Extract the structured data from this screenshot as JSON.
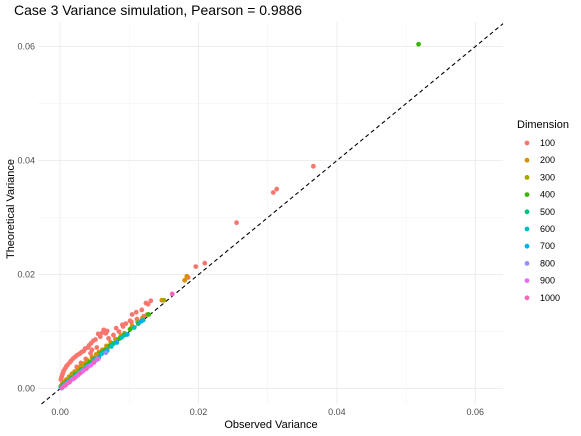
{
  "chart_data": {
    "type": "scatter",
    "title": "Case 3 Variance simulation, Pearson = 0.9886",
    "xlabel": "Observed Variance",
    "ylabel": "Theoretical Variance",
    "xlim": [
      -0.0032,
      0.064
    ],
    "ylim": [
      -0.0027,
      0.0643
    ],
    "xticks": [
      0.0,
      0.02,
      0.04,
      0.06
    ],
    "yticks": [
      0.0,
      0.02,
      0.04,
      0.06
    ],
    "xtick_labels": [
      "0.00",
      "0.02",
      "0.04",
      "0.06"
    ],
    "ytick_labels": [
      "0.00",
      "0.02",
      "0.04",
      "0.06"
    ],
    "grid": true,
    "reference_line": {
      "slope": 1,
      "intercept": 0,
      "style": "dashed"
    },
    "legend": {
      "title": "Dimension",
      "position": "right",
      "entries": [
        "100",
        "200",
        "300",
        "400",
        "500",
        "600",
        "700",
        "800",
        "900",
        "1000"
      ]
    },
    "colors": [
      "#F8766D",
      "#D89000",
      "#A3A500",
      "#39B600",
      "#00BF7D",
      "#00BFC4",
      "#00B0F6",
      "#9590FF",
      "#E76BF3",
      "#FF62BC"
    ],
    "series": [
      {
        "name": "100",
        "color": "#F8766D",
        "points": [
          [
            0.0366,
            0.039
          ],
          [
            0.0313,
            0.035
          ],
          [
            0.0308,
            0.0344
          ],
          [
            0.0255,
            0.0291
          ],
          [
            0.0209,
            0.022
          ],
          [
            0.0196,
            0.0214
          ],
          [
            0.0185,
            0.0195
          ],
          [
            0.0131,
            0.0154
          ],
          [
            0.0124,
            0.015
          ],
          [
            0.0127,
            0.0148
          ],
          [
            0.0118,
            0.0138
          ],
          [
            0.011,
            0.0134
          ],
          [
            0.0104,
            0.013
          ],
          [
            0.0101,
            0.0119
          ],
          [
            0.0103,
            0.0117
          ],
          [
            0.009,
            0.0112
          ],
          [
            0.0091,
            0.0109
          ],
          [
            0.0081,
            0.0106
          ],
          [
            0.0068,
            0.0101
          ],
          [
            0.0066,
            0.0097
          ],
          [
            0.0063,
            0.0103
          ],
          [
            0.0061,
            0.0098
          ],
          [
            0.0055,
            0.0096
          ],
          [
            0.0058,
            0.0091
          ],
          [
            0.0051,
            0.0086
          ],
          [
            0.0048,
            0.0084
          ],
          [
            0.0045,
            0.008
          ],
          [
            0.0042,
            0.0076
          ],
          [
            0.004,
            0.0072
          ],
          [
            0.0036,
            0.007
          ],
          [
            0.0034,
            0.0066
          ],
          [
            0.0031,
            0.0064
          ],
          [
            0.0028,
            0.0061
          ],
          [
            0.0025,
            0.0059
          ],
          [
            0.0022,
            0.0056
          ],
          [
            0.0019,
            0.0053
          ],
          [
            0.0016,
            0.0049
          ],
          [
            0.0014,
            0.0046
          ],
          [
            0.0011,
            0.0042
          ],
          [
            0.0009,
            0.0039
          ],
          [
            0.0007,
            0.0035
          ],
          [
            0.0005,
            0.0031
          ],
          [
            0.0004,
            0.0027
          ],
          [
            0.0003,
            0.0024
          ],
          [
            0.0002,
            0.002
          ],
          [
            0.0001,
            0.0016
          ],
          [
            0.0006,
            0.0011
          ],
          [
            0.0012,
            0.0014
          ],
          [
            0.0024,
            0.0038
          ],
          [
            0.003,
            0.0045
          ],
          [
            0.0037,
            0.0052
          ],
          [
            0.0044,
            0.0062
          ],
          [
            0.0053,
            0.0072
          ],
          [
            0.007,
            0.0088
          ],
          [
            0.0077,
            0.0094
          ],
          [
            0.0085,
            0.01
          ],
          [
            0.0095,
            0.0114
          ],
          [
            0.0111,
            0.0122
          ],
          [
            0.0121,
            0.0127
          ],
          [
            0.0046,
            0.0068
          ]
        ]
      },
      {
        "name": "200",
        "color": "#D89000",
        "points": [
          [
            0.0183,
            0.0197
          ],
          [
            0.018,
            0.019
          ],
          [
            0.0147,
            0.0155
          ],
          [
            0.0119,
            0.0124
          ],
          [
            0.0104,
            0.011
          ],
          [
            0.0088,
            0.0093
          ],
          [
            0.0073,
            0.0081
          ],
          [
            0.0061,
            0.0068
          ],
          [
            0.0052,
            0.006
          ],
          [
            0.0046,
            0.0055
          ],
          [
            0.004,
            0.0049
          ],
          [
            0.0035,
            0.0044
          ],
          [
            0.003,
            0.004
          ],
          [
            0.0026,
            0.0034
          ],
          [
            0.0021,
            0.003
          ],
          [
            0.0017,
            0.0026
          ],
          [
            0.0013,
            0.0021
          ],
          [
            0.0009,
            0.0016
          ],
          [
            0.0006,
            0.0012
          ],
          [
            0.0003,
            0.0008
          ],
          [
            0.0001,
            0.0004
          ],
          [
            0.0056,
            0.0064
          ],
          [
            0.0067,
            0.0075
          ],
          [
            0.008,
            0.0087
          ]
        ]
      },
      {
        "name": "300",
        "color": "#A3A500",
        "points": [
          [
            0.015,
            0.0155
          ],
          [
            0.0126,
            0.013
          ],
          [
            0.0112,
            0.0117
          ],
          [
            0.0093,
            0.0097
          ],
          [
            0.0081,
            0.0084
          ],
          [
            0.0069,
            0.0073
          ],
          [
            0.0057,
            0.0061
          ],
          [
            0.0047,
            0.0051
          ],
          [
            0.0039,
            0.0043
          ],
          [
            0.0032,
            0.0036
          ],
          [
            0.0026,
            0.003
          ],
          [
            0.002,
            0.0024
          ],
          [
            0.0015,
            0.0019
          ],
          [
            0.001,
            0.0014
          ],
          [
            0.0006,
            0.0009
          ],
          [
            0.0002,
            0.0005
          ],
          [
            0.0042,
            0.0046
          ],
          [
            0.0063,
            0.0066
          ]
        ]
      },
      {
        "name": "400",
        "color": "#39B600",
        "points": [
          [
            0.0518,
            0.0604
          ],
          [
            0.0128,
            0.013
          ],
          [
            0.0101,
            0.0104
          ],
          [
            0.0086,
            0.0088
          ],
          [
            0.0072,
            0.0075
          ],
          [
            0.0059,
            0.0062
          ],
          [
            0.0048,
            0.0051
          ],
          [
            0.0038,
            0.0041
          ],
          [
            0.003,
            0.0033
          ],
          [
            0.0022,
            0.0025
          ],
          [
            0.0016,
            0.0018
          ],
          [
            0.001,
            0.0012
          ],
          [
            0.0005,
            0.0007
          ],
          [
            0.0001,
            0.0003
          ],
          [
            0.0065,
            0.0068
          ],
          [
            0.0043,
            0.0046
          ]
        ]
      },
      {
        "name": "500",
        "color": "#00BF7D",
        "points": [
          [
            0.0113,
            0.0114
          ],
          [
            0.0093,
            0.0094
          ],
          [
            0.0077,
            0.0079
          ],
          [
            0.0062,
            0.0064
          ],
          [
            0.005,
            0.0052
          ],
          [
            0.004,
            0.0041
          ],
          [
            0.0031,
            0.0032
          ],
          [
            0.0023,
            0.0024
          ],
          [
            0.0016,
            0.0017
          ],
          [
            0.001,
            0.0011
          ],
          [
            0.0005,
            0.0006
          ],
          [
            0.0001,
            0.0002
          ]
        ]
      },
      {
        "name": "600",
        "color": "#00BFC4",
        "points": [
          [
            0.012,
            0.012
          ],
          [
            0.0107,
            0.0107
          ],
          [
            0.0089,
            0.009
          ],
          [
            0.0074,
            0.0074
          ],
          [
            0.006,
            0.0061
          ],
          [
            0.0048,
            0.0049
          ],
          [
            0.0038,
            0.0038
          ],
          [
            0.0029,
            0.0029
          ],
          [
            0.0021,
            0.0021
          ],
          [
            0.0014,
            0.0014
          ],
          [
            0.0008,
            0.0008
          ],
          [
            0.0003,
            0.0003
          ]
        ]
      },
      {
        "name": "700",
        "color": "#00B0F6",
        "points": [
          [
            0.0117,
            0.0118
          ],
          [
            0.0097,
            0.0095
          ],
          [
            0.0082,
            0.0081
          ],
          [
            0.0068,
            0.0067
          ],
          [
            0.0056,
            0.0055
          ],
          [
            0.0045,
            0.0043
          ],
          [
            0.0035,
            0.0034
          ],
          [
            0.0026,
            0.0025
          ],
          [
            0.0018,
            0.0017
          ],
          [
            0.0011,
            0.0011
          ],
          [
            0.0006,
            0.0005
          ],
          [
            0.0002,
            0.0001
          ]
        ]
      },
      {
        "name": "800",
        "color": "#9590FF",
        "points": [
          [
            0.0066,
            0.0063
          ],
          [
            0.0052,
            0.005
          ],
          [
            0.0041,
            0.0039
          ],
          [
            0.0032,
            0.003
          ],
          [
            0.0024,
            0.0022
          ],
          [
            0.0017,
            0.0016
          ],
          [
            0.0011,
            0.001
          ],
          [
            0.0006,
            0.0005
          ],
          [
            0.0002,
            0.0001
          ]
        ]
      },
      {
        "name": "900",
        "color": "#E76BF3",
        "points": [
          [
            0.0055,
            0.0052
          ],
          [
            0.0044,
            0.0041
          ],
          [
            0.0034,
            0.0032
          ],
          [
            0.0026,
            0.0024
          ],
          [
            0.0019,
            0.0017
          ],
          [
            0.0013,
            0.0011
          ],
          [
            0.0008,
            0.0006
          ],
          [
            0.0003,
            0.0002
          ]
        ]
      },
      {
        "name": "1000",
        "color": "#FF62BC",
        "points": [
          [
            0.0162,
            0.0166
          ],
          [
            0.0049,
            0.0046
          ],
          [
            0.0038,
            0.0035
          ],
          [
            0.0029,
            0.0027
          ],
          [
            0.0021,
            0.0019
          ],
          [
            0.0014,
            0.0012
          ],
          [
            0.0008,
            0.0007
          ],
          [
            0.0003,
            0.0002
          ]
        ]
      }
    ]
  }
}
